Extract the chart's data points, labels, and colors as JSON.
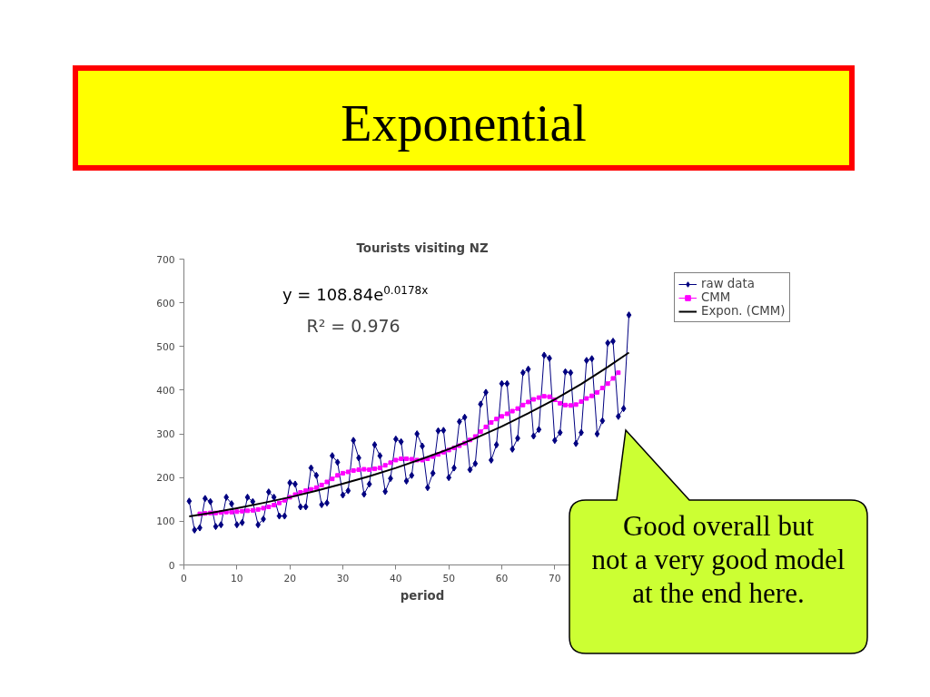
{
  "chart_data": {
    "type": "line",
    "title": "Exponential",
    "subtitle": "Tourists visiting NZ",
    "xlabel": "period",
    "xlim": [
      0,
      90
    ],
    "xticks": [
      0,
      10,
      20,
      30,
      40,
      50,
      60,
      70
    ],
    "ylim": [
      0,
      700
    ],
    "yticks": [
      0,
      100,
      200,
      300,
      400,
      500,
      600,
      700
    ],
    "grid": false,
    "legend": "right",
    "annotations": [
      "y = 108.84e$^{0.0178x}$",
      "R² = 0.976",
      "Good overall but\nnot a very good model\nat the end here."
    ],
    "series": [
      {
        "name": "raw data",
        "color": "#000080",
        "marker": "diamond",
        "x": [
          1,
          2,
          3,
          4,
          5,
          6,
          7,
          8,
          9,
          10,
          11,
          12,
          13,
          14,
          15,
          16,
          17,
          18,
          19,
          20,
          21,
          22,
          23,
          24,
          25,
          26,
          27,
          28,
          29,
          30,
          31,
          32,
          33,
          34,
          35,
          36,
          37,
          38,
          39,
          40,
          41,
          42,
          43,
          44,
          45,
          46,
          47,
          48,
          49,
          50,
          51,
          52,
          53,
          54,
          55,
          56,
          57,
          58,
          59,
          60,
          61,
          62,
          63,
          64,
          65,
          66,
          67,
          68,
          69,
          70,
          71,
          72,
          73,
          74,
          75,
          76,
          77,
          78,
          79,
          80,
          81,
          82,
          83,
          84
        ],
        "values": [
          146,
          80,
          85,
          152,
          145,
          88,
          92,
          155,
          140,
          92,
          97,
          155,
          145,
          92,
          105,
          167,
          155,
          112,
          112,
          188,
          185,
          133,
          133,
          222,
          205,
          138,
          142,
          250,
          235,
          160,
          170,
          285,
          245,
          162,
          185,
          275,
          250,
          168,
          198,
          288,
          282,
          192,
          205,
          300,
          272,
          177,
          210,
          307,
          308,
          200,
          222,
          328,
          338,
          218,
          232,
          368,
          395,
          240,
          275,
          415,
          415,
          265,
          290,
          440,
          448,
          295,
          310,
          480,
          473,
          285,
          303,
          442,
          440,
          278,
          303,
          468,
          472,
          300,
          330,
          508,
          512,
          340,
          358,
          572
        ]
      },
      {
        "name": "CMM",
        "color": "#ff00ff",
        "marker": "square",
        "x": [
          3,
          4,
          5,
          6,
          7,
          8,
          9,
          10,
          11,
          12,
          13,
          14,
          15,
          16,
          17,
          18,
          19,
          20,
          21,
          22,
          23,
          24,
          25,
          26,
          27,
          28,
          29,
          30,
          31,
          32,
          33,
          34,
          35,
          36,
          37,
          38,
          39,
          40,
          41,
          42,
          43,
          44,
          45,
          46,
          47,
          48,
          49,
          50,
          51,
          52,
          53,
          54,
          55,
          56,
          57,
          58,
          59,
          60,
          61,
          62,
          63,
          64,
          65,
          66,
          67,
          68,
          69,
          70,
          71,
          72,
          73,
          74,
          75,
          76,
          77,
          78,
          79,
          80,
          81,
          82
        ],
        "values": [
          117,
          118,
          119,
          119,
          120,
          121,
          121,
          122,
          123,
          124,
          125,
          127,
          130,
          133,
          137,
          142,
          148,
          155,
          161,
          166,
          170,
          173,
          177,
          183,
          190,
          197,
          205,
          210,
          213,
          216,
          218,
          219,
          218,
          220,
          222,
          228,
          234,
          240,
          243,
          243,
          242,
          240,
          240,
          243,
          248,
          253,
          258,
          263,
          268,
          273,
          279,
          286,
          294,
          305,
          316,
          326,
          334,
          340,
          346,
          352,
          358,
          366,
          373,
          379,
          383,
          386,
          385,
          378,
          370,
          366,
          365,
          367,
          374,
          381,
          387,
          395,
          405,
          415,
          427,
          440
        ]
      },
      {
        "name": "Expon. (CMM)",
        "color": "#000000",
        "marker": "none",
        "x": [
          1,
          5,
          10,
          15,
          20,
          25,
          30,
          35,
          40,
          45,
          50,
          55,
          60,
          65,
          70,
          75,
          80,
          84
        ],
        "values": [
          111,
          119,
          130,
          142,
          155,
          170,
          186,
          203,
          222,
          243,
          265,
          290,
          317,
          347,
          379,
          414,
          453,
          486
        ]
      }
    ]
  }
}
